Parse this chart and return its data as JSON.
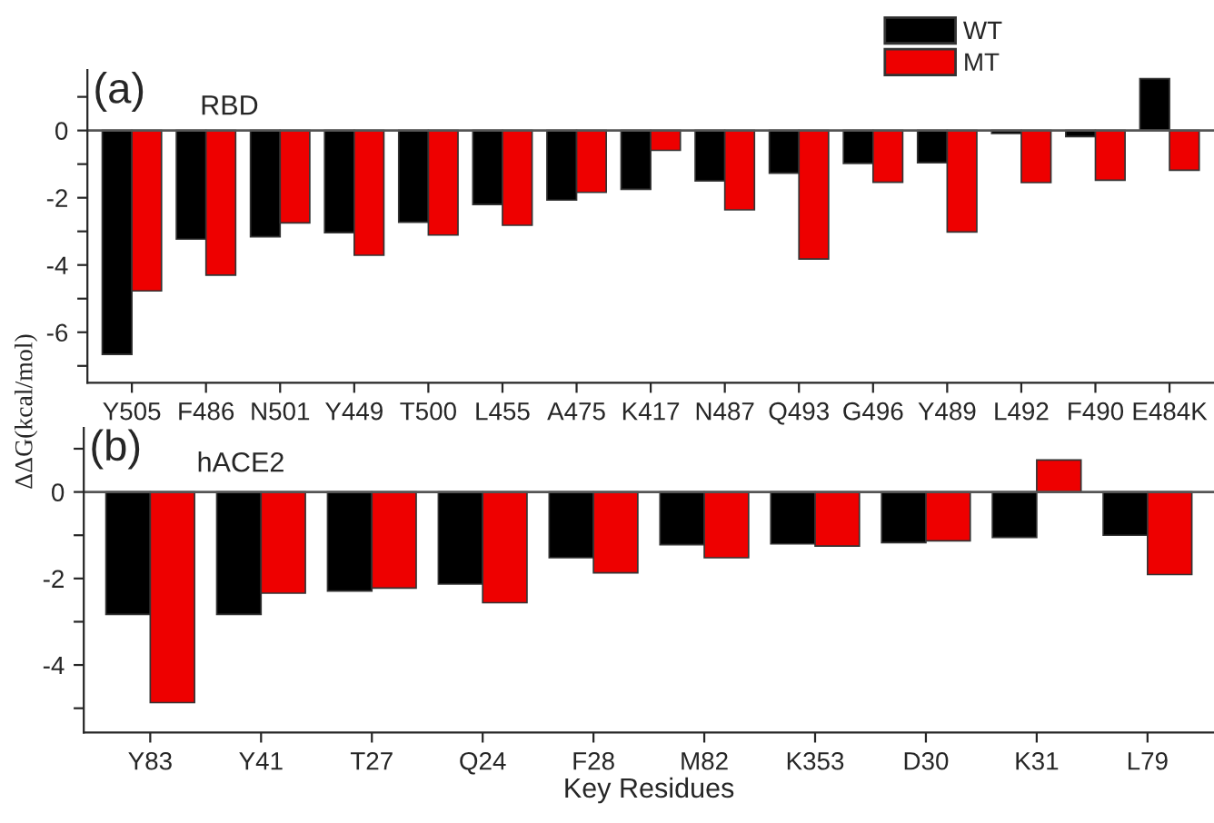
{
  "chart_data": [
    {
      "type": "bar",
      "ylabel": "ΔΔG(kcal/mol)",
      "annotations": [
        "(a)",
        "RBD"
      ],
      "legend": "top",
      "categories": [
        "Y505",
        "F486",
        "N501",
        "Y449",
        "T500",
        "L455",
        "A475",
        "K417",
        "N487",
        "Q493",
        "G496",
        "Y489",
        "L492",
        "F490",
        "E484K"
      ],
      "series": [
        {
          "name": "WT",
          "color": "#000000",
          "values": [
            -6.66,
            -3.23,
            -3.16,
            -3.04,
            -2.73,
            -2.2,
            -2.07,
            -1.75,
            -1.5,
            -1.27,
            -0.98,
            -0.96,
            -0.09,
            -0.18,
            1.54
          ]
        },
        {
          "name": "MT",
          "color": "#ee0000",
          "values": [
            -4.77,
            -4.3,
            -2.75,
            -3.71,
            -3.11,
            -2.82,
            -1.84,
            -0.59,
            -2.36,
            -3.82,
            -1.54,
            -3.02,
            -1.55,
            -1.48,
            -1.18
          ]
        }
      ],
      "ylim": [
        -7.5,
        1.8
      ],
      "yticks": [
        {
          "value": -7,
          "label": null
        },
        -6,
        {
          "value": -5,
          "label": null
        },
        -4,
        {
          "value": -3,
          "label": null
        },
        -2,
        {
          "value": -1,
          "label": null
        },
        0,
        {
          "value": 1,
          "label": null
        }
      ]
    },
    {
      "type": "bar",
      "xlabel": "Key Residues",
      "annotations": [
        "(b)",
        "hACE2"
      ],
      "categories": [
        "Y83",
        "Y41",
        "T27",
        "Q24",
        "F28",
        "M82",
        "K353",
        "D30",
        "K31",
        "L79"
      ],
      "series": [
        {
          "color": "#000000",
          "values": [
            -2.83,
            -2.83,
            -2.29,
            -2.13,
            -1.52,
            -1.22,
            -1.2,
            -1.17,
            -1.05,
            -1.0
          ]
        },
        {
          "color": "#ee0000",
          "values": [
            -4.87,
            -2.34,
            -2.22,
            -2.56,
            -1.87,
            -1.52,
            -1.25,
            -1.13,
            0.74,
            -1.91
          ]
        }
      ],
      "ylim": [
        -5.56,
        1.48
      ],
      "yticks": [
        {
          "value": -5,
          "label": null
        },
        -4,
        {
          "value": -3,
          "label": null
        },
        -2,
        {
          "value": -1,
          "label": null
        },
        0,
        {
          "value": 1,
          "label": null
        }
      ]
    }
  ]
}
